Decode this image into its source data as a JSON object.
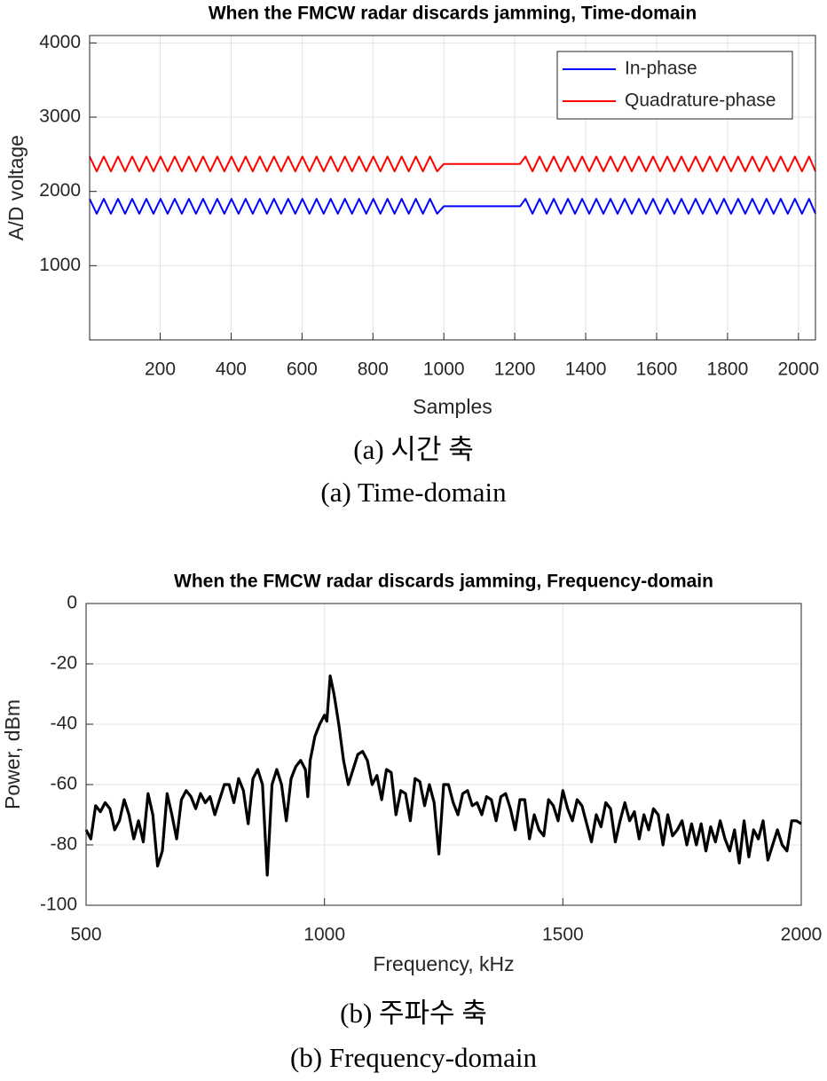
{
  "chart_data": [
    {
      "type": "line",
      "title": "When the FMCW radar discards jamming, Time-domain",
      "x_label": "Samples",
      "y_label": "A/D voltage",
      "x": [
        1,
        21,
        41,
        61,
        81,
        101,
        121,
        141,
        161,
        181,
        201,
        221,
        241,
        261,
        281,
        301,
        321,
        341,
        361,
        381,
        401,
        421,
        441,
        461,
        481,
        501,
        521,
        541,
        561,
        581,
        601,
        621,
        641,
        661,
        681,
        701,
        721,
        741,
        761,
        781,
        801,
        821,
        841,
        861,
        881,
        901,
        921,
        941,
        961,
        981,
        1000,
        1215,
        1230,
        1250,
        1270,
        1290,
        1310,
        1330,
        1350,
        1370,
        1390,
        1410,
        1430,
        1450,
        1470,
        1490,
        1510,
        1530,
        1550,
        1570,
        1590,
        1610,
        1630,
        1650,
        1670,
        1690,
        1710,
        1730,
        1750,
        1770,
        1790,
        1810,
        1830,
        1850,
        1870,
        1890,
        1910,
        1930,
        1950,
        1970,
        1990,
        2010,
        2030,
        2048
      ],
      "series": [
        {
          "name": "In-phase",
          "color": "#0000ff",
          "values": [
            1900,
            1700,
            1900,
            1700,
            1900,
            1700,
            1900,
            1700,
            1900,
            1700,
            1900,
            1700,
            1900,
            1700,
            1900,
            1700,
            1900,
            1700,
            1900,
            1700,
            1900,
            1700,
            1900,
            1700,
            1900,
            1700,
            1900,
            1700,
            1900,
            1700,
            1900,
            1700,
            1900,
            1700,
            1900,
            1700,
            1900,
            1700,
            1900,
            1700,
            1900,
            1700,
            1900,
            1700,
            1900,
            1700,
            1900,
            1700,
            1900,
            1700,
            1800,
            1800,
            1900,
            1700,
            1900,
            1700,
            1900,
            1700,
            1900,
            1700,
            1900,
            1700,
            1900,
            1700,
            1900,
            1700,
            1900,
            1700,
            1900,
            1700,
            1900,
            1700,
            1900,
            1700,
            1900,
            1700,
            1900,
            1700,
            1900,
            1700,
            1900,
            1700,
            1900,
            1700,
            1900,
            1700,
            1900,
            1700,
            1900,
            1700,
            1900,
            1700,
            1900,
            1700
          ]
        },
        {
          "name": "Quadrature-phase",
          "color": "#ff0000",
          "values": [
            2470,
            2270,
            2470,
            2270,
            2470,
            2270,
            2470,
            2270,
            2470,
            2270,
            2470,
            2270,
            2470,
            2270,
            2470,
            2270,
            2470,
            2270,
            2470,
            2270,
            2470,
            2270,
            2470,
            2270,
            2470,
            2270,
            2470,
            2270,
            2470,
            2270,
            2470,
            2270,
            2470,
            2270,
            2470,
            2270,
            2470,
            2270,
            2470,
            2270,
            2470,
            2270,
            2470,
            2270,
            2470,
            2270,
            2470,
            2270,
            2470,
            2270,
            2370,
            2370,
            2470,
            2270,
            2470,
            2270,
            2470,
            2270,
            2470,
            2270,
            2470,
            2270,
            2470,
            2270,
            2470,
            2270,
            2470,
            2270,
            2470,
            2270,
            2470,
            2270,
            2470,
            2270,
            2470,
            2270,
            2470,
            2270,
            2470,
            2270,
            2470,
            2270,
            2470,
            2270,
            2470,
            2270,
            2470,
            2270,
            2470,
            2270,
            2470,
            2270,
            2470,
            2270
          ]
        }
      ],
      "xlim": [
        1,
        2048
      ],
      "xticks": [
        200,
        400,
        600,
        800,
        1000,
        1200,
        1400,
        1600,
        1800,
        2000
      ],
      "ylim": [
        0,
        4100
      ],
      "yticks": [
        1000,
        2000,
        3000,
        4000
      ],
      "grid": true,
      "legend": "upper right"
    },
    {
      "type": "line",
      "title": "When the FMCW radar discards jamming, Frequency-domain",
      "x_label": "Frequency, kHz",
      "y_label": "Power, dBm",
      "x": [
        500,
        510,
        520,
        530,
        540,
        550,
        560,
        570,
        580,
        590,
        600,
        610,
        620,
        630,
        640,
        650,
        660,
        670,
        680,
        690,
        700,
        710,
        720,
        730,
        740,
        750,
        760,
        770,
        780,
        790,
        800,
        810,
        820,
        830,
        840,
        850,
        860,
        870,
        880,
        890,
        900,
        910,
        920,
        930,
        940,
        950,
        960,
        965,
        970,
        980,
        990,
        1000,
        1005,
        1012,
        1020,
        1030,
        1040,
        1050,
        1060,
        1070,
        1080,
        1090,
        1100,
        1110,
        1120,
        1130,
        1140,
        1150,
        1160,
        1170,
        1180,
        1190,
        1200,
        1210,
        1220,
        1230,
        1240,
        1250,
        1260,
        1270,
        1280,
        1290,
        1300,
        1310,
        1320,
        1330,
        1340,
        1350,
        1360,
        1370,
        1380,
        1390,
        1400,
        1410,
        1420,
        1430,
        1440,
        1450,
        1460,
        1470,
        1480,
        1490,
        1500,
        1510,
        1520,
        1530,
        1540,
        1550,
        1560,
        1570,
        1580,
        1590,
        1600,
        1610,
        1620,
        1630,
        1640,
        1650,
        1660,
        1670,
        1680,
        1690,
        1700,
        1710,
        1720,
        1730,
        1740,
        1750,
        1760,
        1770,
        1780,
        1790,
        1800,
        1810,
        1820,
        1830,
        1840,
        1850,
        1860,
        1870,
        1880,
        1890,
        1900,
        1910,
        1920,
        1930,
        1940,
        1950,
        1960,
        1970,
        1980,
        1990,
        2000
      ],
      "series": [
        {
          "name": "Power",
          "color": "#000000",
          "values": [
            -75,
            -78,
            -67,
            -69,
            -66,
            -68,
            -75,
            -72,
            -65,
            -70,
            -78,
            -72,
            -79,
            -63,
            -70,
            -87,
            -82,
            -63,
            -70,
            -78,
            -65,
            -62,
            -64,
            -68,
            -63,
            -66,
            -64,
            -70,
            -65,
            -60,
            -60,
            -66,
            -58,
            -62,
            -73,
            -58,
            -55,
            -60,
            -90,
            -60,
            -55,
            -60,
            -72,
            -58,
            -54,
            -52,
            -55,
            -64,
            -52,
            -44,
            -40,
            -37,
            -39,
            -24,
            -30,
            -40,
            -52,
            -60,
            -55,
            -50,
            -49,
            -52,
            -60,
            -57,
            -65,
            -55,
            -56,
            -70,
            -62,
            -63,
            -72,
            -58,
            -59,
            -67,
            -60,
            -66,
            -83,
            -60,
            -60,
            -66,
            -70,
            -63,
            -62,
            -67,
            -66,
            -70,
            -64,
            -65,
            -72,
            -64,
            -63,
            -68,
            -75,
            -65,
            -65,
            -78,
            -70,
            -75,
            -77,
            -65,
            -67,
            -72,
            -62,
            -68,
            -72,
            -65,
            -67,
            -73,
            -79,
            -70,
            -74,
            -66,
            -68,
            -79,
            -72,
            -66,
            -72,
            -69,
            -78,
            -70,
            -75,
            -68,
            -70,
            -80,
            -70,
            -77,
            -75,
            -72,
            -80,
            -73,
            -80,
            -73,
            -82,
            -74,
            -79,
            -72,
            -78,
            -82,
            -75,
            -86,
            -72,
            -84,
            -75,
            -78,
            -72,
            -85,
            -80,
            -75,
            -80,
            -82,
            -72,
            -72,
            -73
          ]
        }
      ],
      "xlim": [
        500,
        2000
      ],
      "xticks": [
        500,
        1000,
        1500,
        2000
      ],
      "ylim": [
        -100,
        0
      ],
      "yticks": [
        -100,
        -80,
        -60,
        -40,
        -20,
        0
      ],
      "grid": true
    }
  ],
  "captions": [
    "(a)  시간 축",
    "(a)  Time-domain",
    "(b)  주파수 축",
    "(b)  Frequency-domain"
  ]
}
